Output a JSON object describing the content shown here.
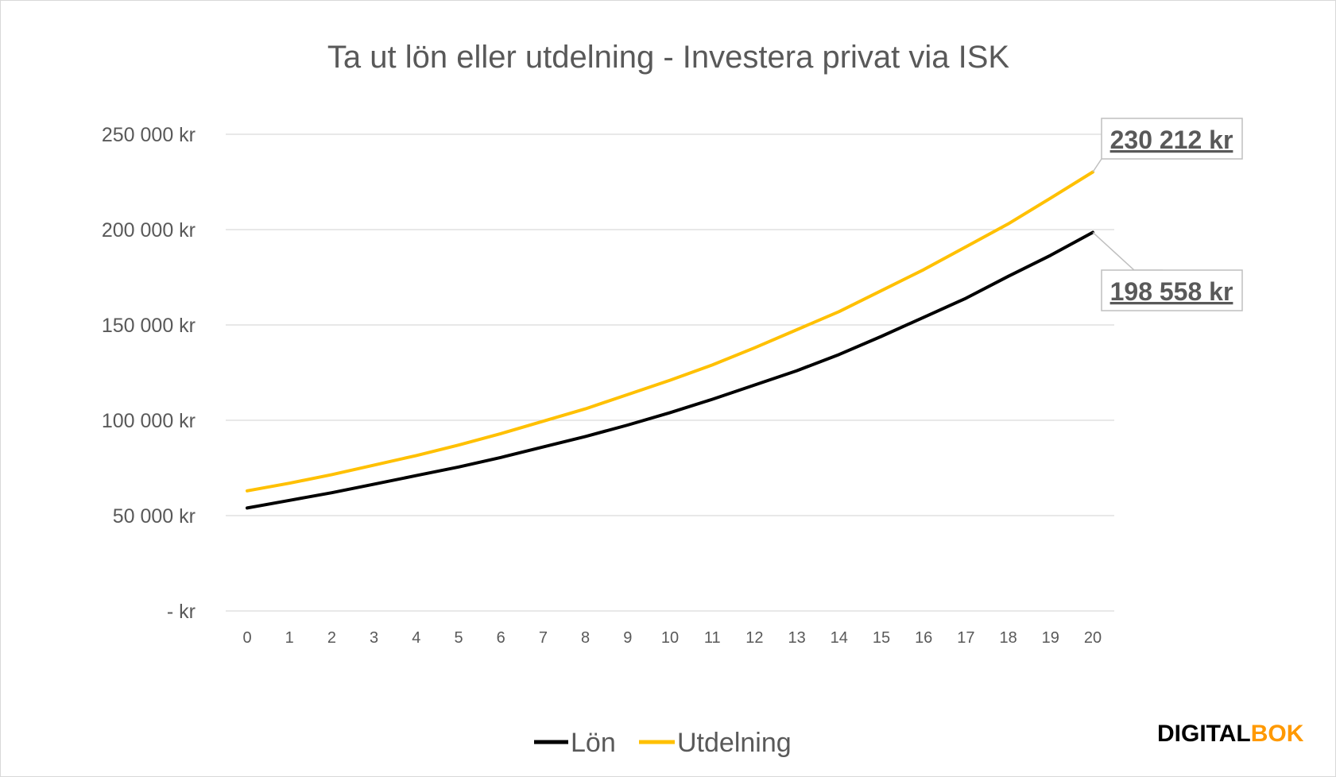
{
  "chart_data": {
    "type": "line",
    "title": "Ta ut lön eller utdelning - Investera privat via ISK",
    "xlabel": "",
    "ylabel": "",
    "x": [
      0,
      1,
      2,
      3,
      4,
      5,
      6,
      7,
      8,
      9,
      10,
      11,
      12,
      13,
      14,
      15,
      16,
      17,
      18,
      19,
      20
    ],
    "ylim": [
      0,
      250000
    ],
    "yticks": [
      0,
      50000,
      100000,
      150000,
      200000,
      250000
    ],
    "ytick_labels": [
      "-   kr",
      "50 000 kr",
      "100 000 kr",
      "150 000 kr",
      "200 000 kr",
      "250 000 kr"
    ],
    "grid": true,
    "legend_position": "bottom",
    "series": [
      {
        "name": "Lön",
        "color": "#000000",
        "values": [
          54000,
          58000,
          62000,
          66500,
          71000,
          75500,
          80500,
          86000,
          91500,
          97500,
          104000,
          111000,
          118500,
          126000,
          134500,
          144000,
          154000,
          164000,
          175500,
          186500,
          198558
        ]
      },
      {
        "name": "Utdelning",
        "color": "#FFC000",
        "values": [
          63000,
          67000,
          71500,
          76500,
          81500,
          87000,
          93000,
          99500,
          106000,
          113500,
          121000,
          129000,
          138000,
          147500,
          157000,
          168000,
          179000,
          191000,
          203000,
          216500,
          230212
        ]
      }
    ],
    "annotations": [
      {
        "series": "Utdelning",
        "x": 20,
        "text": "230 212 kr"
      },
      {
        "series": "Lön",
        "x": 20,
        "text": "198 558 kr"
      }
    ]
  },
  "brand": {
    "part1": "DIGITAL",
    "part2": "BOK",
    "color1": "#000000",
    "color2": "#FF9900"
  }
}
